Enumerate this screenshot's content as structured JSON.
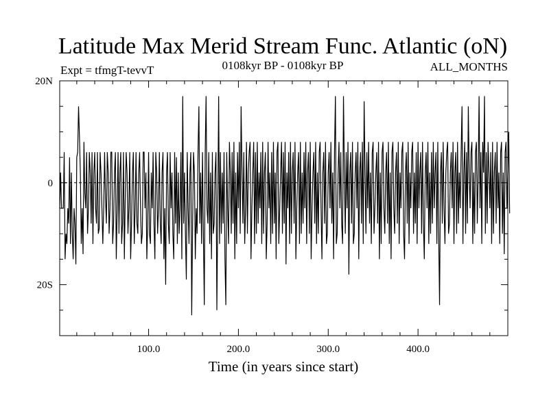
{
  "chart_data": {
    "type": "line",
    "title": "Latitude Max Merid Stream Func. Atlantic (oN)",
    "left_label": "Expt = tfmgT-tevvT",
    "center_label": "0108kyr BP - 0108kyr BP",
    "right_label": "ALL_MONTHS",
    "xlabel": "Time (in years since start)",
    "ylabel": "",
    "xlim": [
      1,
      500
    ],
    "ylim": [
      -30,
      20
    ],
    "x_ticks": [
      {
        "value": 100,
        "label": "100.0"
      },
      {
        "value": 200,
        "label": "200.0"
      },
      {
        "value": 300,
        "label": "300.0"
      },
      {
        "value": 400,
        "label": "400.0"
      }
    ],
    "y_ticks": [
      {
        "value": 20,
        "label": "20N"
      },
      {
        "value": 0,
        "label": "0"
      },
      {
        "value": -20,
        "label": "20S"
      }
    ],
    "reference_line": {
      "value": 0,
      "style": "dashed"
    },
    "series": [
      {
        "name": "Latitude of max meridional stream function",
        "x_start": 1,
        "x_step": 1,
        "values": [
          -5,
          2,
          -5,
          -5,
          -5,
          6,
          -15,
          -10,
          -12,
          -5,
          -8,
          5,
          -12,
          2,
          -10,
          -15,
          -5,
          -8,
          -16,
          5,
          6,
          15,
          9,
          2,
          -12,
          -5,
          -14,
          8,
          -2,
          -5,
          6,
          -10,
          -5,
          6,
          2,
          -8,
          6,
          -12,
          2,
          6,
          -5,
          -8,
          6,
          -10,
          -9,
          6,
          2,
          -5,
          -12,
          -5,
          6,
          -3,
          -8,
          6,
          2,
          -10,
          -5,
          6,
          6,
          -12,
          -8,
          2,
          6,
          -15,
          -5,
          6,
          -10,
          2,
          6,
          -12,
          -8,
          6,
          -15,
          -3,
          6,
          2,
          -10,
          -5,
          6,
          -15,
          -8,
          2,
          6,
          -12,
          -5,
          6,
          -8,
          -10,
          2,
          6,
          -5,
          -12,
          -10,
          6,
          6,
          -5,
          2,
          -15,
          -8,
          6,
          -10,
          -12,
          2,
          -5,
          6,
          -8,
          -15,
          6,
          2,
          -10,
          -5,
          6,
          -8,
          -12,
          2,
          6,
          -15,
          -5,
          -20,
          2,
          6,
          -8,
          -12,
          6,
          -5,
          2,
          -10,
          -15,
          6,
          -8,
          5,
          -12,
          2,
          -10,
          -5,
          6,
          -15,
          17,
          -8,
          2,
          -10,
          -19,
          6,
          -5,
          -12,
          2,
          6,
          -26,
          -8,
          6,
          2,
          -15,
          -5,
          -10,
          6,
          15,
          -8,
          2,
          -12,
          6,
          -10,
          -24,
          6,
          17,
          -5,
          -8,
          6,
          -12,
          2,
          -15,
          6,
          -10,
          -8,
          2,
          6,
          -25,
          -5,
          17,
          -12,
          6,
          -10,
          2,
          -8,
          6,
          -15,
          -24,
          6,
          -5,
          -12,
          8,
          2,
          -10,
          6,
          -8,
          8,
          -15,
          2,
          -12,
          6,
          -5,
          8,
          -10,
          15,
          2,
          -8,
          6,
          -12,
          -5,
          8,
          -10,
          2,
          6,
          8,
          -15,
          -5,
          2,
          8,
          -12,
          6,
          -10,
          8,
          -8,
          2,
          -5,
          6,
          -12,
          8,
          -10,
          2,
          6,
          -15,
          -8,
          8,
          -5,
          2,
          -12,
          6,
          -10,
          8,
          -8,
          2,
          -15,
          6,
          8,
          -12,
          -5,
          2,
          8,
          -10,
          6,
          -8,
          8,
          -16,
          2,
          -5,
          6,
          -12,
          8,
          -10,
          2,
          6,
          -8,
          8,
          -15,
          -5,
          2,
          6,
          -12,
          8,
          -10,
          2,
          -8,
          6,
          -5,
          8,
          -12,
          2,
          6,
          -10,
          8,
          -15,
          -5,
          2,
          6,
          -8,
          8,
          -12,
          2,
          -10,
          6,
          8,
          -5,
          -15,
          2,
          6,
          -8,
          8,
          -12,
          -10,
          2,
          6,
          -5,
          8,
          -8,
          2,
          -15,
          6,
          17,
          -12,
          -10,
          2,
          8,
          -5,
          6,
          -8,
          -12,
          17,
          2,
          -10,
          6,
          -5,
          8,
          -18,
          2,
          6,
          -8,
          8,
          -12,
          -10,
          2,
          6,
          -5,
          8,
          -15,
          2,
          6,
          -8,
          8,
          -12,
          16,
          2,
          -10,
          6,
          -5,
          8,
          -8,
          2,
          -12,
          6,
          8,
          -10,
          -5,
          2,
          6,
          -8,
          8,
          -15,
          2,
          -12,
          6,
          8,
          -5,
          -10,
          2,
          6,
          -8,
          8,
          -12,
          2,
          -15,
          6,
          8,
          -5,
          -10,
          2,
          6,
          -8,
          8,
          -12,
          2,
          -5,
          6,
          8,
          -10,
          -15,
          2,
          6,
          -8,
          8,
          -12,
          2,
          -5,
          6,
          8,
          -10,
          2,
          -8,
          6,
          -12,
          8,
          -5,
          2,
          6,
          -10,
          8,
          -8,
          -15,
          2,
          6,
          -5,
          8,
          -12,
          2,
          -10,
          6,
          -8,
          8,
          -5,
          2,
          6,
          -12,
          8,
          -10,
          -24,
          2,
          6,
          -8,
          8,
          -5,
          -12,
          2,
          6,
          8,
          -10,
          -8,
          2,
          6,
          -5,
          8,
          -12,
          2,
          6,
          -10,
          8,
          -8,
          2,
          -5,
          6,
          15,
          -12,
          2,
          8,
          -10,
          6,
          -8,
          15,
          2,
          -5,
          6,
          8,
          -12,
          2,
          -10,
          6,
          8,
          -8,
          2,
          17,
          -5,
          6,
          -12,
          8,
          2,
          17,
          -10,
          6,
          -8,
          8,
          2,
          -5,
          6,
          -12,
          8,
          -10,
          2,
          6,
          -8,
          8,
          -5,
          2,
          -12,
          6,
          8,
          -10,
          2,
          -14,
          6,
          8,
          -5,
          2,
          10,
          -6
        ]
      }
    ]
  }
}
